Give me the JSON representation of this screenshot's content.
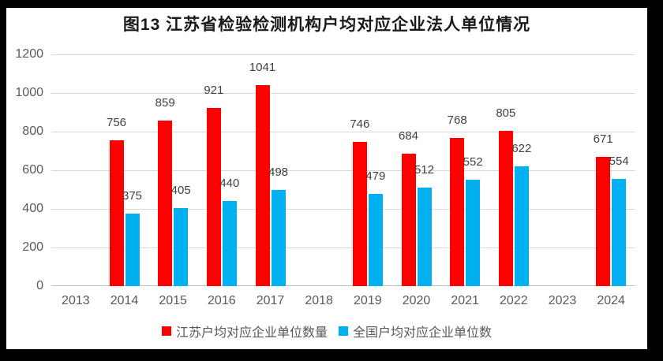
{
  "frame": {
    "border_color": "#000000",
    "background_color": "#ffffff"
  },
  "chart_data": {
    "type": "bar",
    "title": "图13  江苏省检验检测机构户均对应企业法人单位情况",
    "categories": [
      "2013",
      "2014",
      "2015",
      "2016",
      "2017",
      "2018",
      "2019",
      "2020",
      "2021",
      "2022",
      "2023",
      "2024"
    ],
    "series": [
      {
        "key": "jiangsu",
        "name": "江苏户均对应企业单位数量",
        "color": "#ff0000",
        "values": [
          null,
          756,
          859,
          921,
          1041,
          null,
          746,
          684,
          768,
          805,
          null,
          671
        ]
      },
      {
        "key": "national",
        "name": "全国户均对应企业单位数",
        "color": "#00b0f0",
        "values": [
          null,
          375,
          405,
          440,
          498,
          null,
          479,
          512,
          552,
          622,
          null,
          554
        ]
      }
    ],
    "xlabel": "",
    "ylabel": "",
    "ylim": [
      0,
      1200
    ],
    "yticks": [
      0,
      200,
      400,
      600,
      800,
      1000,
      1200
    ],
    "grid": "horizontal",
    "legend_position": "bottom",
    "data_labels": true,
    "gridline_color": "#d9d9d9",
    "axis_line_color": "#bfbfbf",
    "tick_label_color": "#595959",
    "data_label_color": "#404040"
  }
}
